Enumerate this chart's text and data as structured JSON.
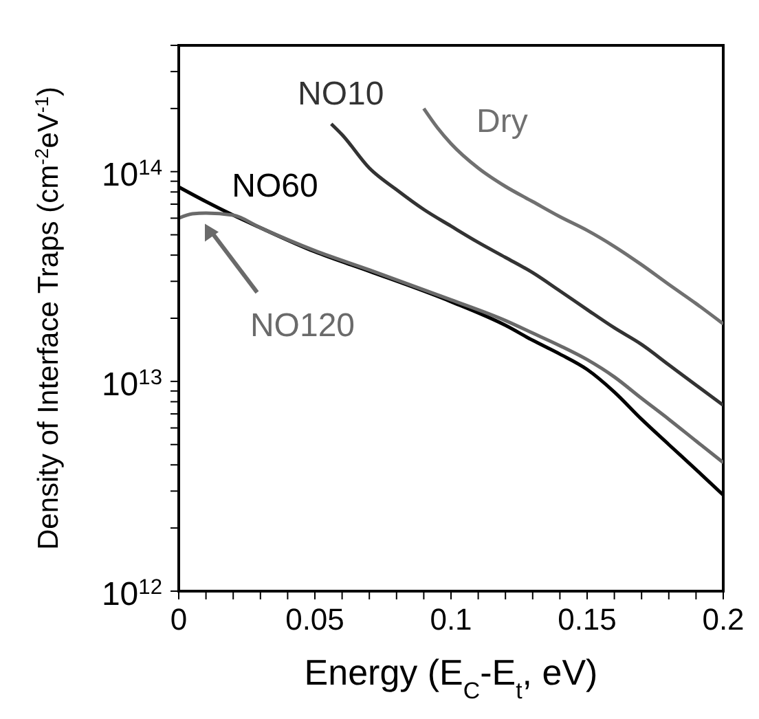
{
  "chart_data": {
    "type": "line",
    "xlabel": "Energy (E$_{C}$-E$_{t}$, eV)",
    "ylabel": "Density of Interface Traps (cm$^{-2}$eV$^{-1}$)",
    "log": "y",
    "marker": "none",
    "line_style": "solid",
    "xlim": [
      0,
      0.2
    ],
    "xticks": [
      0,
      0.05,
      0.1,
      0.15,
      0.2,
      {
        "value": 0.01,
        "label": null
      },
      {
        "value": 0.02,
        "label": null
      },
      {
        "value": 0.03,
        "label": null
      },
      {
        "value": 0.04,
        "label": null
      },
      {
        "value": 0.06,
        "label": null
      },
      {
        "value": 0.07,
        "label": null
      },
      {
        "value": 0.08,
        "label": null
      },
      {
        "value": 0.09,
        "label": null
      },
      {
        "value": 0.11,
        "label": null
      },
      {
        "value": 0.12,
        "label": null
      },
      {
        "value": 0.13,
        "label": null
      },
      {
        "value": 0.14,
        "label": null
      },
      {
        "value": 0.16,
        "label": null
      },
      {
        "value": 0.17,
        "label": null
      },
      {
        "value": 0.18,
        "label": null
      },
      {
        "value": 0.19,
        "label": null
      }
    ],
    "ylim": [
      1000000000000.0,
      400000000000000.0
    ],
    "yticks": [
      {
        "value": 1000000000000.0,
        "label": "10$^{12}$"
      },
      {
        "value": 10000000000000.0,
        "label": "10$^{13}$"
      },
      {
        "value": 100000000000000.0,
        "label": "10$^{14}$"
      },
      {
        "value": 2000000000000.0,
        "label": null
      },
      {
        "value": 3000000000000.0,
        "label": null
      },
      {
        "value": 4000000000000.0,
        "label": null
      },
      {
        "value": 5000000000000.0,
        "label": null
      },
      {
        "value": 6000000000000.0,
        "label": null
      },
      {
        "value": 7000000000000.0,
        "label": null
      },
      {
        "value": 8000000000000.0,
        "label": null
      },
      {
        "value": 9000000000000.0,
        "label": null
      },
      {
        "value": 20000000000000.0,
        "label": null
      },
      {
        "value": 30000000000000.0,
        "label": null
      },
      {
        "value": 40000000000000.0,
        "label": null
      },
      {
        "value": 50000000000000.0,
        "label": null
      },
      {
        "value": 60000000000000.0,
        "label": null
      },
      {
        "value": 70000000000000.0,
        "label": null
      },
      {
        "value": 80000000000000.0,
        "label": null
      },
      {
        "value": 90000000000000.0,
        "label": null
      },
      {
        "value": 200000000000000.0,
        "label": null
      },
      {
        "value": 300000000000000.0,
        "label": null
      },
      {
        "value": 400000000000000.0,
        "label": null
      }
    ],
    "series": [
      {
        "name": "NO60",
        "color": "#000000",
        "x": [
          0,
          0.01,
          0.02,
          0.03,
          0.05,
          0.07,
          0.1,
          0.12,
          0.13,
          0.14,
          0.15,
          0.16,
          0.17,
          0.18,
          0.19,
          0.2
        ],
        "values": [
          84500000000000.0,
          72000000000000.0,
          62000000000000.0,
          54000000000000.0,
          41500000000000.0,
          33500000000000.0,
          24000000000000.0,
          18500000000000.0,
          15700000000000.0,
          13500000000000.0,
          11400000000000.0,
          8900000000000.0,
          6600000000000.0,
          5000000000000.0,
          3800000000000.0,
          2870000000000.0
        ]
      },
      {
        "name": "NO120",
        "color": "#6a6a6a",
        "x": [
          0,
          0.005,
          0.01,
          0.02,
          0.03,
          0.05,
          0.07,
          0.1,
          0.12,
          0.13,
          0.14,
          0.15,
          0.16,
          0.17,
          0.18,
          0.19,
          0.2
        ],
        "values": [
          60000000000000.0,
          63000000000000.0,
          63500000000000.0,
          62000000000000.0,
          54000000000000.0,
          42000000000000.0,
          34000000000000.0,
          24500000000000.0,
          19500000000000.0,
          17000000000000.0,
          14800000000000.0,
          12700000000000.0,
          10500000000000.0,
          8300000000000.0,
          6600000000000.0,
          5200000000000.0,
          4100000000000.0
        ]
      },
      {
        "name": "NO10",
        "color": "#333333",
        "x": [
          0.056,
          0.06,
          0.07,
          0.08,
          0.09,
          0.1,
          0.11,
          0.12,
          0.13,
          0.14,
          0.15,
          0.16,
          0.17,
          0.18,
          0.19,
          0.2
        ],
        "values": [
          169000000000000.0,
          150000000000000.0,
          104000000000000.0,
          82000000000000.0,
          66000000000000.0,
          55000000000000.0,
          46000000000000.0,
          39000000000000.0,
          33000000000000.0,
          27000000000000.0,
          22000000000000.0,
          18000000000000.0,
          15000000000000.0,
          12000000000000.0,
          9600000000000.0,
          7700000000000.0
        ]
      },
      {
        "name": "Dry",
        "color": "#707070",
        "x": [
          0.09,
          0.095,
          0.1,
          0.11,
          0.12,
          0.13,
          0.14,
          0.15,
          0.16,
          0.17,
          0.18,
          0.19,
          0.2
        ],
        "values": [
          200000000000000.0,
          162000000000000.0,
          136000000000000.0,
          104000000000000.0,
          85000000000000.0,
          72000000000000.0,
          61000000000000.0,
          52500000000000.0,
          44000000000000.0,
          36000000000000.0,
          29000000000000.0,
          23500000000000.0,
          18800000000000.0
        ]
      }
    ]
  }
}
